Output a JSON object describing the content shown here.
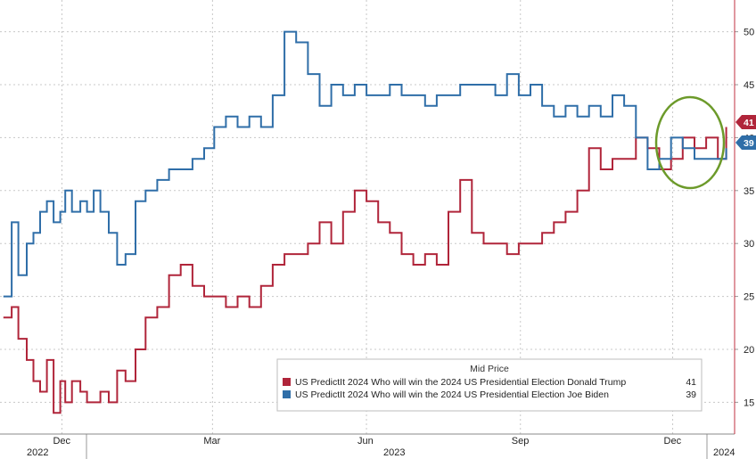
{
  "chart_data": {
    "type": "line",
    "title": "",
    "xlabel": "",
    "ylabel": "",
    "ylim": [
      12,
      53
    ],
    "y_ticks": [
      15,
      20,
      25,
      30,
      35,
      40,
      45,
      50
    ],
    "y_axis_position": "right",
    "grid": true,
    "month_ticks": [
      "Dec",
      "Mar",
      "Jun",
      "Sep",
      "Dec"
    ],
    "year_labels": [
      "2022",
      "2023",
      "2024"
    ],
    "legend": {
      "title": "Mid Price",
      "placement": "bottom-right",
      "entries": [
        {
          "label": "US PredictIt 2024 Who will win the 2024 US Presidential Election Donald Trump",
          "value": "41",
          "color": "#b0253a"
        },
        {
          "label": "US PredictIt 2024 Who will win the 2024 US Presidential Election Joe Biden",
          "value": "39",
          "color": "#2f6ea8"
        }
      ]
    },
    "last_value_tags": [
      {
        "value": "41",
        "color": "#b0253a"
      },
      {
        "value": "39",
        "color": "#2f6ea8"
      }
    ],
    "annotation": {
      "shape": "ellipse",
      "color": "#6c9a2a",
      "note": "highlights Trump overtaking Biden"
    },
    "series": [
      {
        "name": "US PredictIt 2024 Who will win the 2024 US Presidential Election Donald Trump",
        "color": "#b0253a",
        "x": [
          "2022-10-27",
          "2022-11-01",
          "2022-11-05",
          "2022-11-10",
          "2022-11-14",
          "2022-11-18",
          "2022-11-22",
          "2022-11-26",
          "2022-11-30",
          "2022-12-03",
          "2022-12-07",
          "2022-12-12",
          "2022-12-16",
          "2022-12-20",
          "2022-12-24",
          "2022-12-29",
          "2023-01-03",
          "2023-01-08",
          "2023-01-14",
          "2023-01-20",
          "2023-01-27",
          "2023-02-03",
          "2023-02-10",
          "2023-02-17",
          "2023-02-24",
          "2023-03-02",
          "2023-03-09",
          "2023-03-16",
          "2023-03-23",
          "2023-03-30",
          "2023-04-06",
          "2023-04-13",
          "2023-04-20",
          "2023-04-27",
          "2023-05-04",
          "2023-05-11",
          "2023-05-18",
          "2023-05-25",
          "2023-06-01",
          "2023-06-08",
          "2023-06-15",
          "2023-06-22",
          "2023-06-29",
          "2023-07-06",
          "2023-07-13",
          "2023-07-20",
          "2023-07-27",
          "2023-08-03",
          "2023-08-10",
          "2023-08-17",
          "2023-08-24",
          "2023-08-31",
          "2023-09-07",
          "2023-09-14",
          "2023-09-21",
          "2023-09-28",
          "2023-10-05",
          "2023-10-12",
          "2023-10-19",
          "2023-10-26",
          "2023-11-02",
          "2023-11-09",
          "2023-11-16",
          "2023-11-23",
          "2023-11-30",
          "2023-12-07",
          "2023-12-14",
          "2023-12-21",
          "2023-12-28",
          "2024-01-02"
        ],
        "values": [
          23,
          24,
          21,
          19,
          17,
          16,
          19,
          14,
          17,
          15,
          17,
          16,
          15,
          15,
          16,
          15,
          18,
          17,
          20,
          23,
          24,
          27,
          28,
          26,
          25,
          25,
          24,
          25,
          24,
          26,
          28,
          29,
          29,
          30,
          32,
          30,
          33,
          35,
          34,
          32,
          31,
          29,
          28,
          29,
          28,
          33,
          36,
          31,
          30,
          30,
          29,
          30,
          30,
          31,
          32,
          33,
          35,
          39,
          37,
          38,
          38,
          40,
          39,
          37,
          38,
          40,
          39,
          40,
          38,
          41
        ]
      },
      {
        "name": "US PredictIt 2024 Who will win the 2024 US Presidential Election Joe Biden",
        "color": "#2f6ea8",
        "x": [
          "2022-10-27",
          "2022-11-01",
          "2022-11-05",
          "2022-11-10",
          "2022-11-14",
          "2022-11-18",
          "2022-11-22",
          "2022-11-26",
          "2022-11-30",
          "2022-12-03",
          "2022-12-07",
          "2022-12-12",
          "2022-12-16",
          "2022-12-20",
          "2022-12-24",
          "2022-12-29",
          "2023-01-03",
          "2023-01-08",
          "2023-01-14",
          "2023-01-20",
          "2023-01-27",
          "2023-02-03",
          "2023-02-10",
          "2023-02-17",
          "2023-02-24",
          "2023-03-02",
          "2023-03-09",
          "2023-03-16",
          "2023-03-23",
          "2023-03-30",
          "2023-04-06",
          "2023-04-13",
          "2023-04-20",
          "2023-04-27",
          "2023-05-04",
          "2023-05-11",
          "2023-05-18",
          "2023-05-25",
          "2023-06-01",
          "2023-06-08",
          "2023-06-15",
          "2023-06-22",
          "2023-06-29",
          "2023-07-06",
          "2023-07-13",
          "2023-07-20",
          "2023-07-27",
          "2023-08-03",
          "2023-08-10",
          "2023-08-17",
          "2023-08-24",
          "2023-08-31",
          "2023-09-07",
          "2023-09-14",
          "2023-09-21",
          "2023-09-28",
          "2023-10-05",
          "2023-10-12",
          "2023-10-19",
          "2023-10-26",
          "2023-11-02",
          "2023-11-09",
          "2023-11-16",
          "2023-11-23",
          "2023-11-30",
          "2023-12-07",
          "2023-12-14",
          "2023-12-21",
          "2023-12-28",
          "2024-01-02"
        ],
        "values": [
          25,
          32,
          27,
          30,
          31,
          33,
          34,
          32,
          33,
          35,
          33,
          34,
          33,
          35,
          33,
          31,
          28,
          29,
          34,
          35,
          36,
          37,
          37,
          38,
          39,
          41,
          42,
          41,
          42,
          41,
          44,
          50,
          49,
          46,
          43,
          45,
          44,
          45,
          44,
          44,
          45,
          44,
          44,
          43,
          44,
          44,
          45,
          45,
          45,
          44,
          46,
          44,
          45,
          43,
          42,
          43,
          42,
          43,
          42,
          44,
          43,
          40,
          37,
          38,
          40,
          39,
          38,
          38,
          38,
          39
        ]
      }
    ]
  }
}
